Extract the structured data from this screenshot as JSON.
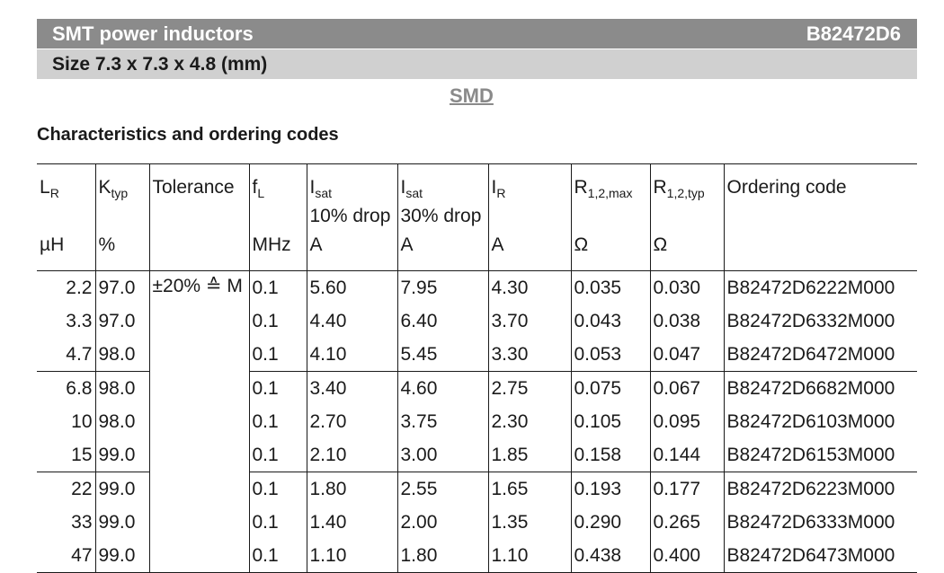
{
  "header": {
    "title": "SMT power inductors",
    "code": "B82472D6",
    "size": "Size 7.3 x 7.3 x 4.8 (mm)"
  },
  "smd_label": "SMD",
  "section_title": "Characteristics and ordering codes",
  "columns": [
    {
      "sym": "L",
      "sub": "R",
      "line2": "",
      "unit": "µH"
    },
    {
      "sym": "K",
      "sub": "typ",
      "line2": "",
      "unit": "%"
    },
    {
      "sym": "Tolerance",
      "sub": "",
      "line2": "",
      "unit": ""
    },
    {
      "sym": "f",
      "sub": "L",
      "line2": "",
      "unit": "MHz"
    },
    {
      "sym": "I",
      "sub": "sat",
      "line2": "10% drop",
      "unit": "A"
    },
    {
      "sym": "I",
      "sub": "sat",
      "line2": "30% drop",
      "unit": "A"
    },
    {
      "sym": "I",
      "sub": "R",
      "line2": "",
      "unit": "A"
    },
    {
      "sym": "R",
      "sub": "1,2,max",
      "line2": "",
      "unit": "Ω"
    },
    {
      "sym": "R",
      "sub": "1,2,typ",
      "line2": "",
      "unit": "Ω"
    },
    {
      "sym": "Ordering code",
      "sub": "",
      "line2": "",
      "unit": ""
    }
  ],
  "tolerance": "±20% ≙ M",
  "rows": [
    [
      "2.2",
      "97.0",
      "0.1",
      "5.60",
      "7.95",
      "4.30",
      "0.035",
      "0.030",
      "B82472D6222M000"
    ],
    [
      "3.3",
      "97.0",
      "0.1",
      "4.40",
      "6.40",
      "3.70",
      "0.043",
      "0.038",
      "B82472D6332M000"
    ],
    [
      "4.7",
      "98.0",
      "0.1",
      "4.10",
      "5.45",
      "3.30",
      "0.053",
      "0.047",
      "B82472D6472M000"
    ],
    [
      "6.8",
      "98.0",
      "0.1",
      "3.40",
      "4.60",
      "2.75",
      "0.075",
      "0.067",
      "B82472D6682M000"
    ],
    [
      "10",
      "98.0",
      "0.1",
      "2.70",
      "3.75",
      "2.30",
      "0.105",
      "0.095",
      "B82472D6103M000"
    ],
    [
      "15",
      "99.0",
      "0.1",
      "2.10",
      "3.00",
      "1.85",
      "0.158",
      "0.144",
      "B82472D6153M000"
    ],
    [
      "22",
      "99.0",
      "0.1",
      "1.80",
      "2.55",
      "1.65",
      "0.193",
      "0.177",
      "B82472D6223M000"
    ],
    [
      "33",
      "99.0",
      "0.1",
      "1.40",
      "2.00",
      "1.35",
      "0.290",
      "0.265",
      "B82472D6333M000"
    ],
    [
      "47",
      "99.0",
      "0.1",
      "1.10",
      "1.80",
      "1.10",
      "0.438",
      "0.400",
      "B82472D6473M000"
    ]
  ]
}
